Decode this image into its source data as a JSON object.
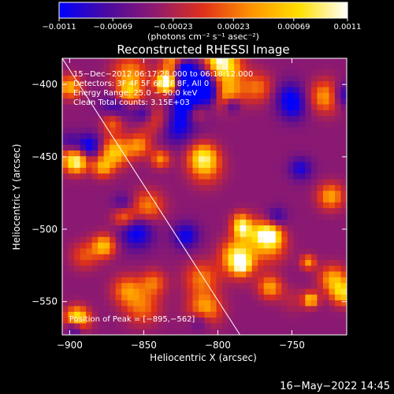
{
  "chart_data": {
    "type": "heatmap",
    "title": "Reconstructed RHESSI Image",
    "xlabel": "Heliocentric X (arcsec)",
    "ylabel": "Heliocentric Y (arcsec)",
    "xlim": [
      -905,
      -713
    ],
    "ylim": [
      -573,
      -382
    ],
    "x_ticks": [
      {
        "value": -900,
        "label": "−900"
      },
      {
        "value": -850,
        "label": "−850"
      },
      {
        "value": -800,
        "label": "−800"
      },
      {
        "value": -750,
        "label": "−750"
      }
    ],
    "y_ticks": [
      {
        "value": -400,
        "label": "−400"
      },
      {
        "value": -450,
        "label": "−450"
      },
      {
        "value": -500,
        "label": "−500"
      },
      {
        "value": -550,
        "label": "−550"
      }
    ],
    "colorbar": {
      "range": [
        -0.0011,
        0.0011
      ],
      "unit_label": "(photons cm⁻² s⁻¹ asec⁻²)",
      "tick_labels": [
        {
          "value": -0.0011,
          "label": "−0.0011"
        },
        {
          "value": -0.00069,
          "label": "−0.00069"
        },
        {
          "value": -0.00023,
          "label": "−0.00023"
        },
        {
          "value": 0.00023,
          "label": "0.00023"
        },
        {
          "value": 0.00069,
          "label": "0.00069"
        },
        {
          "value": 0.0011,
          "label": "0.0011"
        }
      ],
      "colors": [
        "#0000ff",
        "#4b0aa0",
        "#8f1a6f",
        "#e0301a",
        "#ff9400",
        "#ffe000",
        "#ffffff"
      ]
    },
    "limb_line": [
      [
        -905,
        -382
      ],
      [
        -785,
        -573
      ]
    ],
    "annotations": [
      "15−Dec−2012 06:17:28.000 to 06:18:12.000",
      "Detectors: 3F 4F 5F 6F 7F 8F, All 0",
      "Energy Range: 25.0 − 50.0 keV",
      "Clean    Total counts: 3.15E+03"
    ],
    "peak_label": "Position of Peak = [−895,−562]",
    "peak": [
      -895,
      -562
    ]
  },
  "footer": {
    "timestamp": "16−May−2022 14:45"
  }
}
